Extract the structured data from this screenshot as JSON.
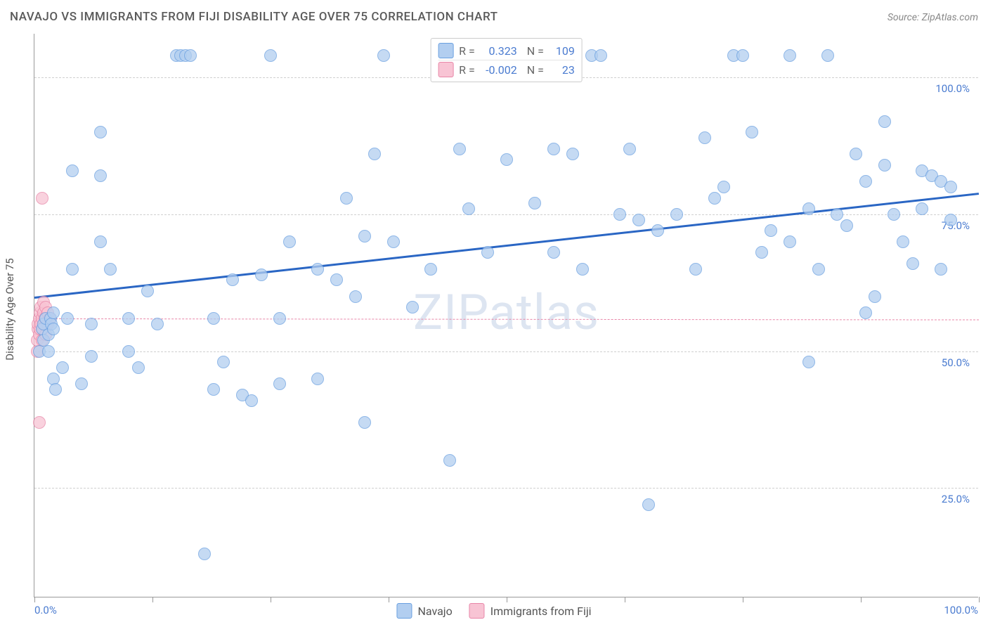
{
  "title": "NAVAJO VS IMMIGRANTS FROM FIJI DISABILITY AGE OVER 75 CORRELATION CHART",
  "source": "Source: ZipAtlas.com",
  "watermark": "ZIPatlas",
  "chart": {
    "type": "scatter",
    "xlim": [
      0,
      100
    ],
    "ylim": [
      5,
      108
    ],
    "ytick_positions": [
      25,
      50,
      75,
      100
    ],
    "ytick_labels": [
      "25.0%",
      "50.0%",
      "75.0%",
      "100.0%"
    ],
    "xtick_positions": [
      0,
      12.5,
      25,
      37.5,
      50,
      62.5,
      75,
      87.5,
      100
    ],
    "xtick_labels": {
      "left": "0.0%",
      "right": "100.0%"
    },
    "ylabel": "Disability Age Over 75",
    "background_color": "#ffffff",
    "grid_color": "#d0d0d0"
  },
  "series": {
    "navajo": {
      "label": "Navajo",
      "fill": "#b2cef0",
      "stroke": "#6aa0e0",
      "marker_radius": 9,
      "marker_opacity": 0.75,
      "r": "0.323",
      "n": "109",
      "trend": {
        "x1": 0,
        "y1": 60,
        "x2": 100,
        "y2": 79,
        "color": "#2a66c4",
        "width": 3,
        "dash": "solid"
      },
      "points": [
        [
          0.5,
          50
        ],
        [
          0.8,
          54
        ],
        [
          1,
          55
        ],
        [
          1,
          52
        ],
        [
          1.2,
          56
        ],
        [
          1.5,
          53
        ],
        [
          1.5,
          50
        ],
        [
          1.7,
          56
        ],
        [
          1.8,
          55
        ],
        [
          2,
          54
        ],
        [
          2,
          57
        ],
        [
          2,
          45
        ],
        [
          2.2,
          43
        ],
        [
          3,
          47
        ],
        [
          3.5,
          56
        ],
        [
          4,
          65
        ],
        [
          4,
          83
        ],
        [
          5,
          44
        ],
        [
          6,
          49
        ],
        [
          6,
          55
        ],
        [
          7,
          70
        ],
        [
          7,
          90
        ],
        [
          7,
          82
        ],
        [
          8,
          65
        ],
        [
          10,
          56
        ],
        [
          10,
          50
        ],
        [
          11,
          47
        ],
        [
          12,
          61
        ],
        [
          13,
          55
        ],
        [
          15,
          104
        ],
        [
          15.5,
          104
        ],
        [
          16,
          104
        ],
        [
          16.5,
          104
        ],
        [
          18,
          13
        ],
        [
          19,
          56
        ],
        [
          19,
          43
        ],
        [
          20,
          48
        ],
        [
          21,
          63
        ],
        [
          22,
          42
        ],
        [
          23,
          41
        ],
        [
          24,
          64
        ],
        [
          25,
          104
        ],
        [
          26,
          56
        ],
        [
          26,
          44
        ],
        [
          27,
          70
        ],
        [
          30,
          45
        ],
        [
          30,
          65
        ],
        [
          32,
          63
        ],
        [
          33,
          78
        ],
        [
          34,
          60
        ],
        [
          35,
          71
        ],
        [
          35,
          37
        ],
        [
          36,
          86
        ],
        [
          37,
          104
        ],
        [
          38,
          70
        ],
        [
          40,
          58
        ],
        [
          42,
          65
        ],
        [
          44,
          30
        ],
        [
          45,
          87
        ],
        [
          46,
          76
        ],
        [
          48,
          68
        ],
        [
          50,
          85
        ],
        [
          52,
          104
        ],
        [
          53,
          77
        ],
        [
          55,
          68
        ],
        [
          55,
          87
        ],
        [
          57,
          86
        ],
        [
          58,
          65
        ],
        [
          59,
          104
        ],
        [
          60,
          104
        ],
        [
          62,
          75
        ],
        [
          63,
          87
        ],
        [
          64,
          74
        ],
        [
          65,
          22
        ],
        [
          66,
          72
        ],
        [
          68,
          75
        ],
        [
          70,
          65
        ],
        [
          71,
          89
        ],
        [
          72,
          78
        ],
        [
          73,
          80
        ],
        [
          74,
          104
        ],
        [
          75,
          104
        ],
        [
          76,
          90
        ],
        [
          77,
          68
        ],
        [
          78,
          72
        ],
        [
          80,
          70
        ],
        [
          80,
          104
        ],
        [
          82,
          76
        ],
        [
          82,
          48
        ],
        [
          83,
          65
        ],
        [
          84,
          104
        ],
        [
          85,
          75
        ],
        [
          86,
          73
        ],
        [
          87,
          86
        ],
        [
          88,
          81
        ],
        [
          88,
          57
        ],
        [
          89,
          60
        ],
        [
          90,
          84
        ],
        [
          90,
          92
        ],
        [
          91,
          75
        ],
        [
          92,
          70
        ],
        [
          93,
          66
        ],
        [
          94,
          83
        ],
        [
          94,
          76
        ],
        [
          95,
          82
        ],
        [
          96,
          81
        ],
        [
          96,
          65
        ],
        [
          97,
          80
        ],
        [
          97,
          74
        ]
      ]
    },
    "fiji": {
      "label": "Immigrants from Fiji",
      "fill": "#f8c4d4",
      "stroke": "#e886a8",
      "marker_radius": 9,
      "marker_opacity": 0.75,
      "r": "-0.002",
      "n": "23",
      "trend": {
        "x1": 0,
        "y1": 56,
        "x2": 100,
        "y2": 55.8,
        "color": "#e886a8",
        "width": 1.5,
        "dash": "dashed"
      },
      "points": [
        [
          0.3,
          50
        ],
        [
          0.3,
          52
        ],
        [
          0.4,
          54
        ],
        [
          0.4,
          55
        ],
        [
          0.5,
          56
        ],
        [
          0.5,
          53
        ],
        [
          0.6,
          57
        ],
        [
          0.6,
          54
        ],
        [
          0.7,
          55
        ],
        [
          0.7,
          58
        ],
        [
          0.8,
          56
        ],
        [
          0.8,
          52
        ],
        [
          0.9,
          54
        ],
        [
          1.0,
          57
        ],
        [
          1.0,
          59
        ],
        [
          1.1,
          56
        ],
        [
          1.2,
          53
        ],
        [
          1.2,
          58
        ],
        [
          1.4,
          55
        ],
        [
          1.4,
          57
        ],
        [
          1.6,
          56
        ],
        [
          0.5,
          37
        ],
        [
          0.8,
          78
        ]
      ]
    }
  },
  "stats_box": {
    "rows": [
      {
        "series": "navajo",
        "r_label": "R =",
        "n_label": "N ="
      },
      {
        "series": "fiji",
        "r_label": "R =",
        "n_label": "N ="
      }
    ]
  },
  "legend": [
    {
      "series": "navajo"
    },
    {
      "series": "fiji"
    }
  ]
}
